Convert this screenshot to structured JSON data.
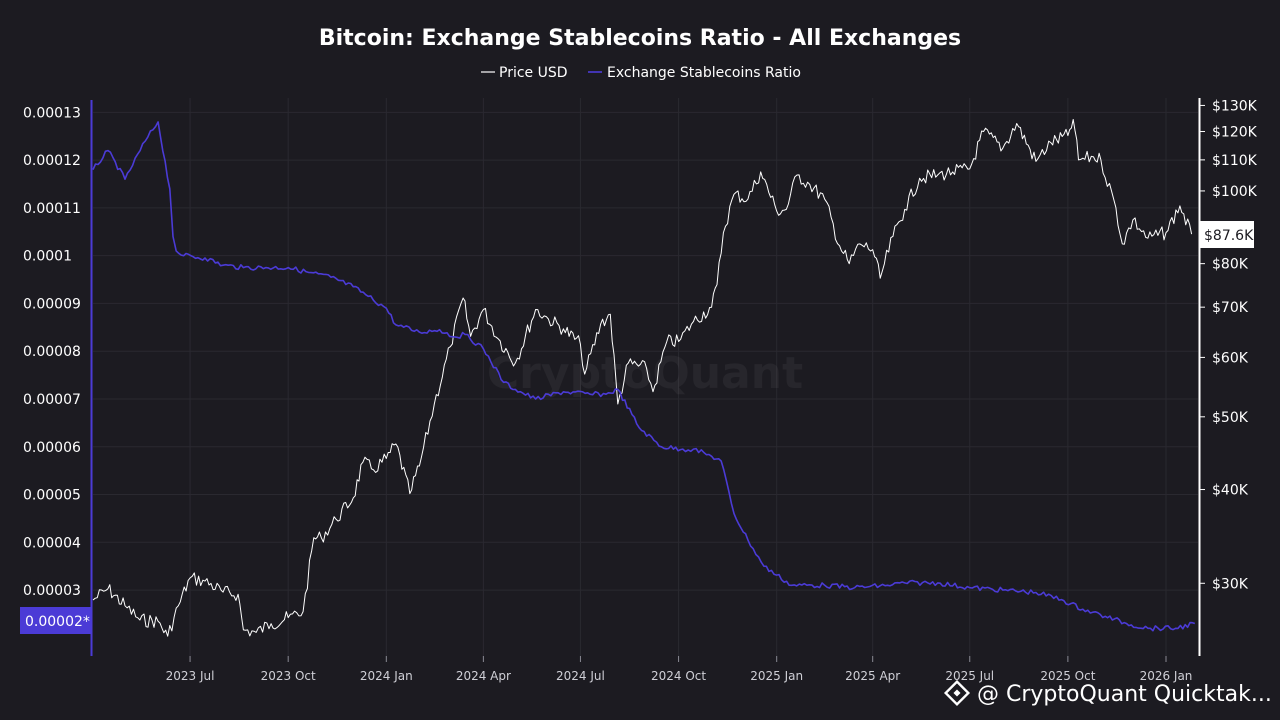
{
  "chart_data": {
    "type": "line",
    "title": "Bitcoin: Exchange Stablecoins Ratio - All Exchanges",
    "legend": [
      "Price USD",
      "Exchange Stablecoins Ratio"
    ],
    "legend_placement": "top-center",
    "grid": true,
    "x_ticks": [
      "2023 Jul",
      "2023 Oct",
      "2024 Jan",
      "2024 Apr",
      "2024 Jul",
      "2024 Oct",
      "2025 Jan",
      "2025 Apr",
      "2025 Jul",
      "2025 Oct",
      "2026 Jan"
    ],
    "xlim": [
      "2023-04-01",
      "2026-01-31"
    ],
    "left_axis": {
      "ticks": [
        "0.00013",
        "0.00012",
        "0.00011",
        "0.0001",
        "0.00009",
        "0.00008",
        "0.00007",
        "0.00006",
        "0.00005",
        "0.00004",
        "0.00003"
      ],
      "ylim": [
        1.62e-05,
        0.000133
      ],
      "current_label": "0.00002*"
    },
    "right_axis": {
      "scale": "log",
      "ticks": [
        "$130K",
        "$120K",
        "$110K",
        "$100K",
        "$80K",
        "$70K",
        "$60K",
        "$50K",
        "$40K",
        "$30K"
      ],
      "ylim": [
        24000,
        133000
      ],
      "current_label": "$87.6K"
    },
    "colors": {
      "price": "#ffffff",
      "ratio": "#4b3bd6",
      "background": "#1c1b21"
    },
    "series": [
      {
        "name": "Price USD",
        "axis": "right",
        "x": [
          "2023-04-01",
          "2023-04-15",
          "2023-05-01",
          "2023-05-15",
          "2023-06-01",
          "2023-06-10",
          "2023-06-20",
          "2023-07-01",
          "2023-07-15",
          "2023-08-01",
          "2023-08-15",
          "2023-08-20",
          "2023-09-01",
          "2023-09-15",
          "2023-10-01",
          "2023-10-15",
          "2023-10-25",
          "2023-11-01",
          "2023-11-15",
          "2023-12-01",
          "2023-12-10",
          "2023-12-20",
          "2024-01-01",
          "2024-01-10",
          "2024-01-23",
          "2024-02-01",
          "2024-02-15",
          "2024-03-01",
          "2024-03-13",
          "2024-03-20",
          "2024-04-01",
          "2024-04-15",
          "2024-05-01",
          "2024-05-20",
          "2024-06-01",
          "2024-06-15",
          "2024-07-01",
          "2024-07-05",
          "2024-07-20",
          "2024-07-29",
          "2024-08-05",
          "2024-08-15",
          "2024-09-01",
          "2024-09-07",
          "2024-09-20",
          "2024-10-01",
          "2024-10-15",
          "2024-11-01",
          "2024-11-06",
          "2024-11-12",
          "2024-11-22",
          "2024-12-05",
          "2024-12-17",
          "2025-01-01",
          "2025-01-10",
          "2025-01-20",
          "2025-02-01",
          "2025-02-15",
          "2025-03-01",
          "2025-03-10",
          "2025-03-20",
          "2025-04-01",
          "2025-04-08",
          "2025-04-20",
          "2025-05-01",
          "2025-05-15",
          "2025-06-01",
          "2025-06-15",
          "2025-07-01",
          "2025-07-14",
          "2025-08-01",
          "2025-08-14",
          "2025-09-01",
          "2025-09-15",
          "2025-10-01",
          "2025-10-06",
          "2025-10-11",
          "2025-10-25",
          "2025-11-01",
          "2025-11-15",
          "2025-11-21",
          "2025-12-01",
          "2025-12-15",
          "2026-01-01",
          "2026-01-14",
          "2026-01-25"
        ],
        "values": [
          28500,
          29500,
          28000,
          26800,
          26700,
          25500,
          28000,
          30500,
          30200,
          29200,
          29000,
          26000,
          25800,
          26500,
          27000,
          27500,
          34500,
          34500,
          36500,
          39000,
          43500,
          42500,
          44000,
          46000,
          39500,
          43000,
          52000,
          62000,
          72000,
          64000,
          69500,
          63500,
          59000,
          69500,
          67500,
          65500,
          62500,
          57000,
          66500,
          68500,
          52000,
          59000,
          58000,
          54000,
          63000,
          63000,
          67000,
          70000,
          75000,
          88000,
          99000,
          97500,
          106000,
          94000,
          94500,
          105000,
          102000,
          97500,
          84500,
          80000,
          85000,
          83500,
          76500,
          87000,
          94500,
          104000,
          105000,
          106000,
          107000,
          120000,
          114000,
          123000,
          109500,
          116000,
          118500,
          124500,
          110000,
          111000,
          110000,
          95000,
          85000,
          91500,
          86500,
          88000,
          95500,
          87600
        ]
      },
      {
        "name": "Exchange Stablecoins Ratio",
        "axis": "left",
        "x": [
          "2023-04-01",
          "2023-04-15",
          "2023-05-01",
          "2023-05-20",
          "2023-06-01",
          "2023-06-12",
          "2023-06-15",
          "2023-06-18",
          "2023-06-25",
          "2023-07-15",
          "2023-08-01",
          "2023-08-20",
          "2023-09-10",
          "2023-10-01",
          "2023-10-20",
          "2023-11-10",
          "2023-12-01",
          "2023-12-15",
          "2024-01-01",
          "2024-01-10",
          "2024-02-01",
          "2024-02-20",
          "2024-03-05",
          "2024-03-15",
          "2024-04-01",
          "2024-04-20",
          "2024-05-01",
          "2024-05-20",
          "2024-06-15",
          "2024-07-10",
          "2024-07-25",
          "2024-08-05",
          "2024-08-25",
          "2024-09-15",
          "2024-10-05",
          "2024-10-15",
          "2024-11-01",
          "2024-11-10",
          "2024-11-22",
          "2024-12-05",
          "2024-12-20",
          "2025-01-15",
          "2025-02-15",
          "2025-03-15",
          "2025-04-15",
          "2025-05-01",
          "2025-06-01",
          "2025-07-01",
          "2025-08-01",
          "2025-09-01",
          "2025-09-25",
          "2025-10-15",
          "2025-11-05",
          "2025-11-25",
          "2025-12-15",
          "2026-01-10",
          "2026-01-28"
        ],
        "values": [
          0.000118,
          0.000122,
          0.000116,
          0.000124,
          0.000128,
          0.000114,
          0.000104,
          0.000101,
          0.0001,
          9.95e-05,
          9.8e-05,
          9.75e-05,
          9.75e-05,
          9.75e-05,
          9.65e-05,
          9.55e-05,
          9.35e-05,
          9.15e-05,
          8.9e-05,
          8.55e-05,
          8.4e-05,
          8.45e-05,
          8.3e-05,
          8.35e-05,
          8.05e-05,
          7.35e-05,
          7.2e-05,
          7e-05,
          7.15e-05,
          7.1e-05,
          7.1e-05,
          7.2e-05,
          6.4e-05,
          6e-05,
          5.95e-05,
          5.95e-05,
          5.8e-05,
          5.7e-05,
          4.6e-05,
          4.05e-05,
          3.5e-05,
          3.1e-05,
          3.1e-05,
          3.05e-05,
          3.1e-05,
          3.15e-05,
          3.15e-05,
          3.05e-05,
          3e-05,
          2.95e-05,
          2.8e-05,
          2.6e-05,
          2.45e-05,
          2.3e-05,
          2.2e-05,
          2.2e-05,
          2.3e-05
        ]
      }
    ]
  },
  "footer": {
    "text": "@ CryptoQuant Quicktak..."
  },
  "watermark": {
    "text": "CryptoQuant"
  }
}
